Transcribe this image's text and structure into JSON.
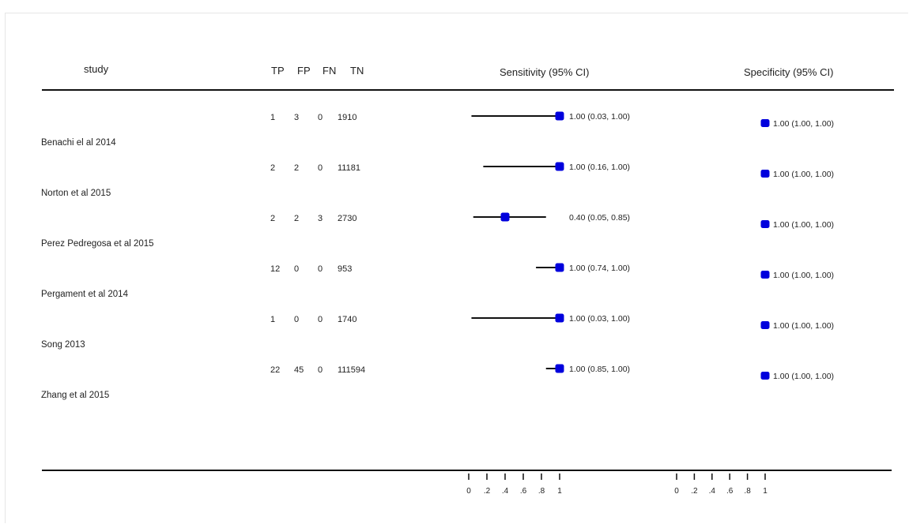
{
  "header": {
    "study": "study",
    "tp": "TP",
    "fp": "FP",
    "fn": "FN",
    "tn": "TN",
    "sensitivity": "Sensitivity (95% CI)",
    "specificity": "Specificity (95% CI)"
  },
  "chart_data": {
    "type": "forest",
    "columns": [
      "TP",
      "FP",
      "FN",
      "TN"
    ],
    "studies": [
      {
        "name": "Benachi el al 2014",
        "tp": "1",
        "fp": "3",
        "fn": "0",
        "tn": "1910",
        "sens": 1.0,
        "sens_lo": 0.03,
        "sens_hi": 1.0,
        "sens_label": "1.00 (0.03, 1.00)",
        "spec": 1.0,
        "spec_lo": 1.0,
        "spec_hi": 1.0,
        "spec_label": "1.00 (1.00, 1.00)"
      },
      {
        "name": "Norton  et al 2015",
        "tp": "2",
        "fp": "2",
        "fn": "0",
        "tn": "11181",
        "sens": 1.0,
        "sens_lo": 0.16,
        "sens_hi": 1.0,
        "sens_label": "1.00 (0.16, 1.00)",
        "spec": 1.0,
        "spec_lo": 1.0,
        "spec_hi": 1.0,
        "spec_label": "1.00 (1.00, 1.00)"
      },
      {
        "name": "Perez Pedregosa et al 2015",
        "tp": "2",
        "fp": "2",
        "fn": "3",
        "tn": "2730",
        "sens": 0.4,
        "sens_lo": 0.05,
        "sens_hi": 0.85,
        "sens_label": "0.40 (0.05, 0.85)",
        "spec": 1.0,
        "spec_lo": 1.0,
        "spec_hi": 1.0,
        "spec_label": "1.00 (1.00, 1.00)"
      },
      {
        "name": "Pergament et al 2014",
        "tp": "12",
        "fp": "0",
        "fn": "0",
        "tn": "953",
        "sens": 1.0,
        "sens_lo": 0.74,
        "sens_hi": 1.0,
        "sens_label": "1.00 (0.74, 1.00)",
        "spec": 1.0,
        "spec_lo": 1.0,
        "spec_hi": 1.0,
        "spec_label": "1.00 (1.00, 1.00)"
      },
      {
        "name": "Song 2013",
        "tp": "1",
        "fp": "0",
        "fn": "0",
        "tn": "1740",
        "sens": 1.0,
        "sens_lo": 0.03,
        "sens_hi": 1.0,
        "sens_label": "1.00 (0.03, 1.00)",
        "spec": 1.0,
        "spec_lo": 1.0,
        "spec_hi": 1.0,
        "spec_label": "1.00 (1.00, 1.00)"
      },
      {
        "name": "Zhang et al 2015",
        "tp": "22",
        "fp": "45",
        "fn": "0",
        "tn": "111594",
        "sens": 1.0,
        "sens_lo": 0.85,
        "sens_hi": 1.0,
        "sens_label": "1.00 (0.85, 1.00)",
        "spec": 1.0,
        "spec_lo": 1.0,
        "spec_hi": 1.0,
        "spec_label": "1.00 (1.00, 1.00)"
      }
    ],
    "xlim": [
      0,
      1
    ],
    "ticks": [
      "0",
      ".2",
      ".4",
      ".6",
      ".8",
      "1"
    ],
    "marker_color": "#0000dd",
    "ci_color": "#111111"
  }
}
